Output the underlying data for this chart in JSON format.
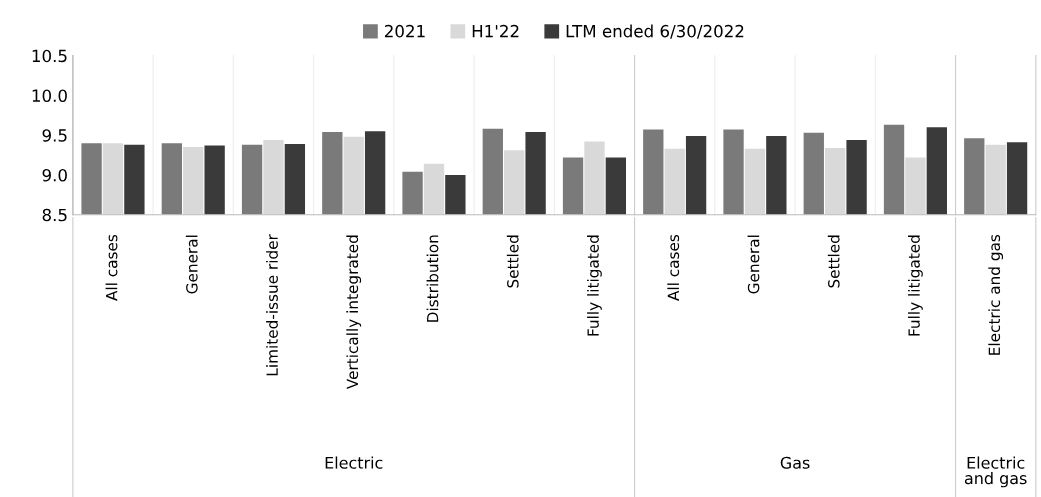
{
  "chart_data": {
    "type": "bar",
    "categories": [
      "All cases",
      "General",
      "Limited-issue rider",
      "Vertically integrated",
      "Distribution",
      "Settled",
      "Fully litigated",
      "All cases",
      "General",
      "Settled",
      "Fully litigated",
      "Electric and gas"
    ],
    "series": [
      {
        "name": "2021",
        "color": "#7a7a7a",
        "values": [
          9.4,
          9.4,
          9.38,
          9.54,
          9.04,
          9.58,
          9.22,
          9.57,
          9.57,
          9.53,
          9.63,
          9.46
        ]
      },
      {
        "name": "H1'22",
        "color": "#d9d9d9",
        "values": [
          9.4,
          9.35,
          9.44,
          9.48,
          9.14,
          9.31,
          9.42,
          9.33,
          9.33,
          9.34,
          9.22,
          9.38
        ]
      },
      {
        "name": "LTM ended 6/30/2022",
        "color": "#3a3a3a",
        "values": [
          9.38,
          9.37,
          9.39,
          9.55,
          9.0,
          9.54,
          9.22,
          9.49,
          9.49,
          9.44,
          9.6,
          9.41
        ]
      }
    ],
    "annotations": [
      "Electric",
      "Gas",
      "Electric\nand gas"
    ],
    "ylim": [
      8.5,
      10.5
    ],
    "yticks": [
      {
        "value": 8.5,
        "label": "8.5"
      },
      {
        "value": 9.0,
        "label": "9.0"
      },
      {
        "value": 9.5,
        "label": "9.5"
      },
      {
        "value": 10.0,
        "label": "10.0"
      },
      {
        "value": 10.5,
        "label": "10.5"
      }
    ],
    "grid": false,
    "legend": "top"
  }
}
